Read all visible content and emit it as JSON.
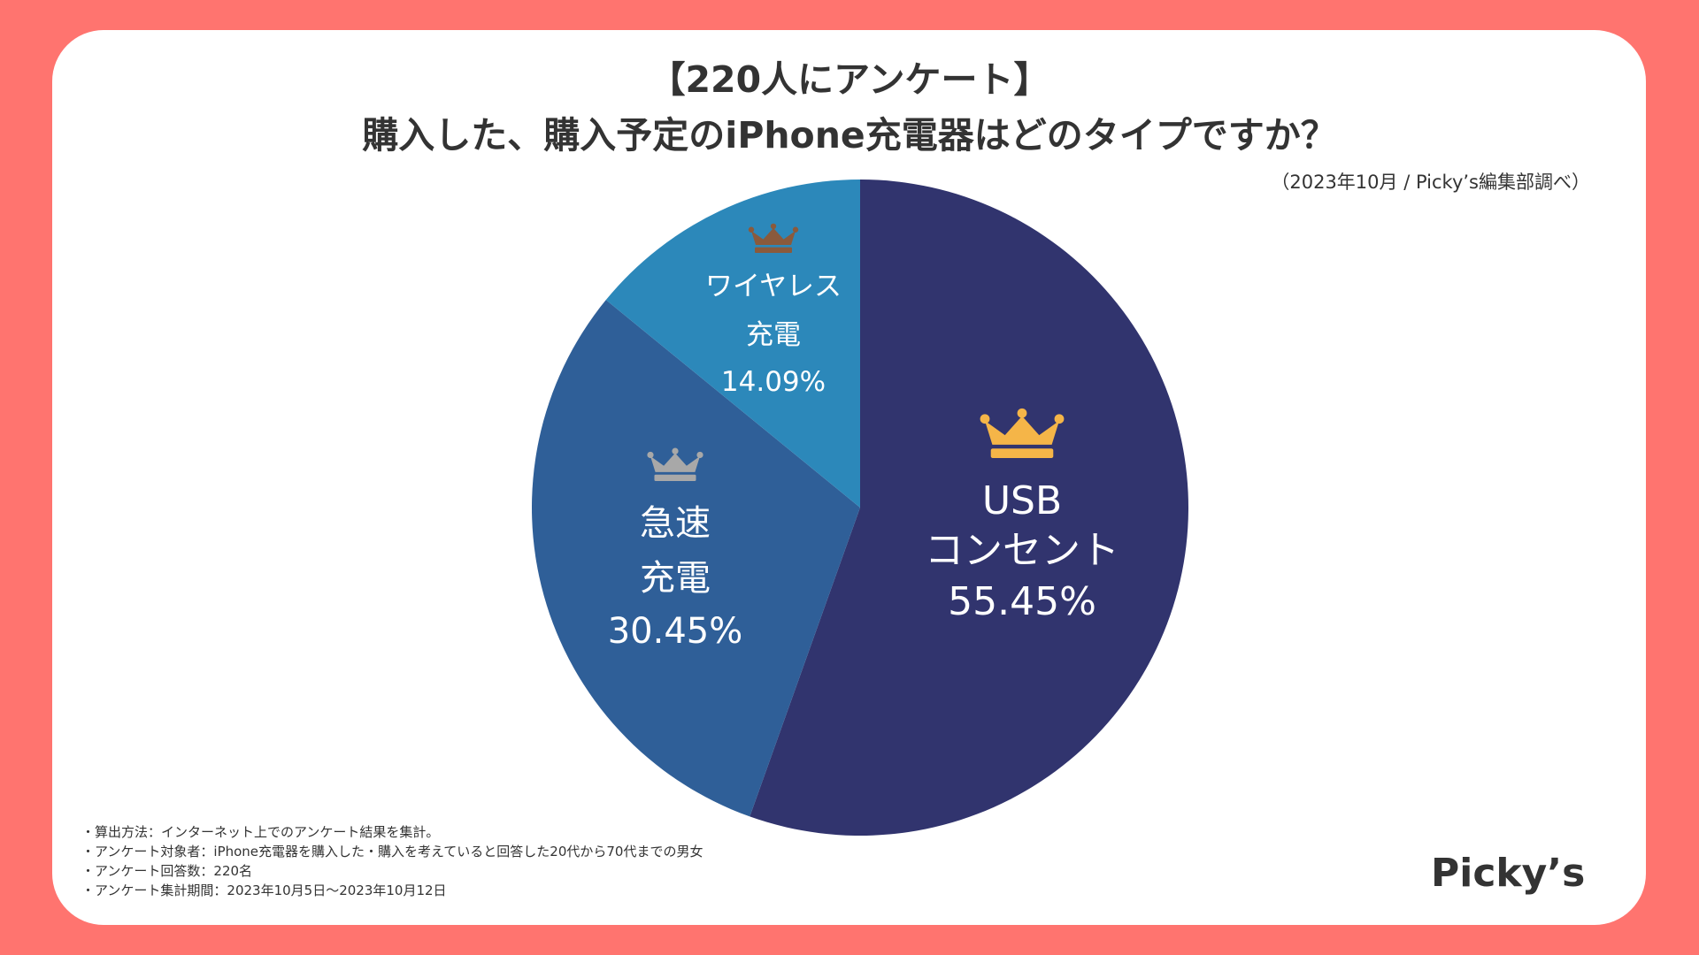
{
  "header": {
    "title_line1": "【220人にアンケート】",
    "title_line2": "購入した、購入予定のiPhone充電器はどのタイプですか？",
    "source": "（2023年10月 / Picky’s編集部調べ）"
  },
  "chart_data": {
    "type": "pie",
    "title": "購入した、購入予定のiPhone充電器はどのタイプですか？",
    "slices": [
      {
        "label_lines": [
          "USB",
          "コンセント"
        ],
        "value": 55.45,
        "value_label": "55.45%",
        "color": "#31346E",
        "rank": 1,
        "crown_color": "#F5B548"
      },
      {
        "label_lines": [
          "急速",
          "充電"
        ],
        "value": 30.45,
        "value_label": "30.45%",
        "color": "#2F5F98",
        "rank": 2,
        "crown_color": "#A8A8A8"
      },
      {
        "label_lines": [
          "ワイヤレス",
          "充電"
        ],
        "value": 14.09,
        "value_label": "14.09%",
        "color": "#2C88BA",
        "rank": 3,
        "crown_color": "#8A5A3C"
      }
    ],
    "start": "12 o'clock",
    "direction": "clockwise"
  },
  "notes": [
    "・算出方法：インターネット上でのアンケート結果を集計。",
    "・アンケート対象者：iPhone充電器を購入した・購入を考えていると回答した20代から70代までの男女",
    "・アンケート回答数：220名",
    "・アンケート集計期間：2023年10月5日〜2023年10月12日"
  ],
  "logo": "Picky’s"
}
